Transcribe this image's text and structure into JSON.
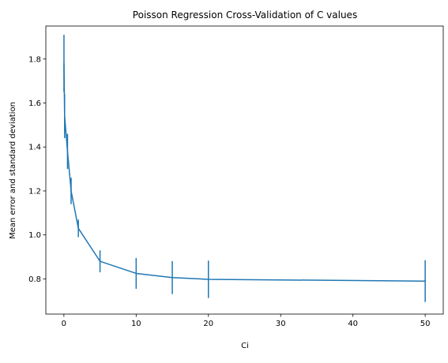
{
  "chart_data": {
    "type": "line",
    "title": "Poisson Regression Cross-Validation of C values",
    "xlabel": "Ci",
    "ylabel": "Mean error and standard deviation",
    "xlim": [
      -2.5,
      52.5
    ],
    "ylim": [
      0.64,
      1.95
    ],
    "x_ticks": [
      0,
      10,
      20,
      30,
      40,
      50
    ],
    "x_tick_labels": [
      "0",
      "10",
      "20",
      "30",
      "40",
      "50"
    ],
    "y_ticks": [
      0.8,
      1.0,
      1.2,
      1.4,
      1.6,
      1.8
    ],
    "y_tick_labels": [
      "0.8",
      "1.0",
      "1.2",
      "1.4",
      "1.6",
      "1.8"
    ],
    "grid": false,
    "legend": false,
    "color": "#1f77b4",
    "series": [
      {
        "x": [
          0.01,
          0.1,
          0.5,
          1,
          2,
          5,
          10,
          15,
          20,
          50
        ],
        "y": [
          1.78,
          1.54,
          1.38,
          1.2,
          1.03,
          0.88,
          0.825,
          0.806,
          0.798,
          0.79
        ],
        "yerr": [
          0.13,
          0.1,
          0.08,
          0.06,
          0.04,
          0.05,
          0.07,
          0.075,
          0.085,
          0.095
        ]
      }
    ]
  }
}
